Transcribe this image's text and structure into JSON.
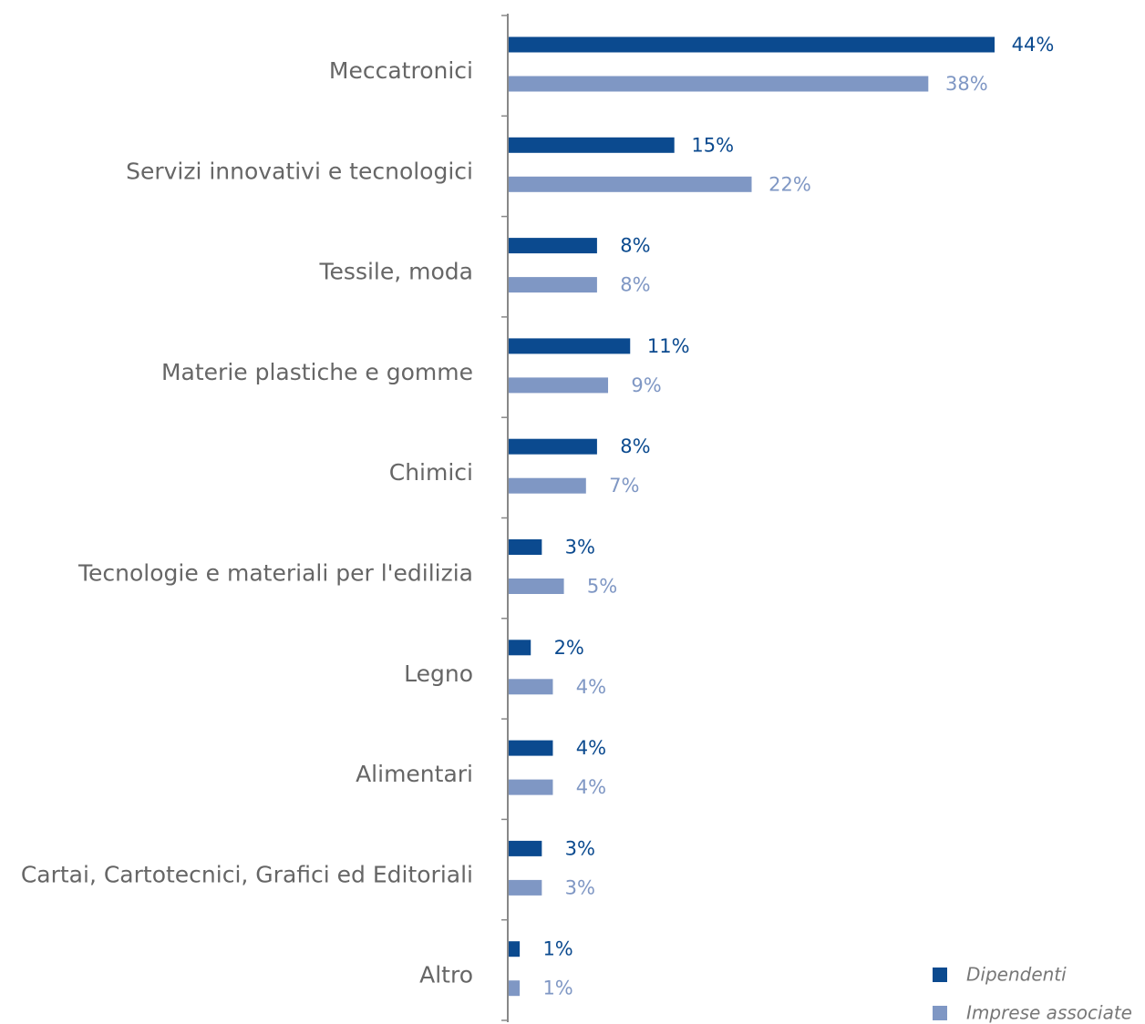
{
  "chart_data": {
    "type": "hbar",
    "categories": [
      "Meccatronici",
      "Servizi innovativi e tecnologici",
      "Tessile, moda",
      "Materie plastiche e gomme",
      "Chimici",
      "Tecnologie e materiali per l'edilizia",
      "Legno",
      "Alimentari",
      "Cartai, Cartotecnici, Grafici ed Editoriali",
      "Altro"
    ],
    "series": [
      {
        "name": "Dipendenti",
        "color": "#0b4a8f",
        "values": [
          44,
          15,
          8,
          11,
          8,
          3,
          2,
          4,
          3,
          1
        ],
        "value_labels": [
          "44%",
          "15%",
          "8%",
          "11%",
          "8%",
          "3%",
          "2%",
          "4%",
          "3%",
          "1%"
        ]
      },
      {
        "name": "Imprese associate",
        "color": "#7f97c4",
        "values": [
          38,
          22,
          8,
          9,
          7,
          5,
          4,
          4,
          3,
          1
        ],
        "value_labels": [
          "38%",
          "22%",
          "8%",
          "9%",
          "7%",
          "5%",
          "4%",
          "4%",
          "3%",
          "1%"
        ]
      }
    ],
    "legend": "bottom-right"
  }
}
